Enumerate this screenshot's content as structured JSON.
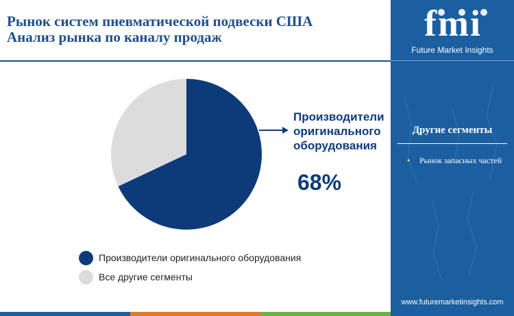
{
  "header": {
    "title_line1": "Рынок систем пневматической подвески США",
    "title_line2": "Анализ рынка по каналу продаж"
  },
  "chart_data": {
    "type": "pie",
    "slices": [
      {
        "label": "Производители оригинального оборудования",
        "value": 68,
        "color": "#0d3b7a"
      },
      {
        "label": "Все другие сегменты",
        "value": 32,
        "color": "#dcdcdc"
      }
    ],
    "callout": {
      "label_lines": [
        "Производители",
        "оригинального",
        "оборудования"
      ],
      "value": "68%"
    }
  },
  "legend": {
    "items": [
      {
        "label": "Производители оригинального оборудования",
        "color": "#0d3b7a"
      },
      {
        "label": "Все другие сегменты",
        "color": "#dcdcdc"
      }
    ]
  },
  "sidebar": {
    "logo_text": "fmi",
    "brand": "Future Market Insights",
    "other_heading": "Другие сегменты",
    "other_items": [
      "Рынок запасных частей"
    ],
    "website": "www.futuremarketinsights.com"
  },
  "colors": {
    "accent": "#0d3b7a",
    "sidebar": "#1b5fa0",
    "bar": [
      "#1b5fa0",
      "#e07b24",
      "#6db33f",
      "#1b5fa0"
    ]
  }
}
